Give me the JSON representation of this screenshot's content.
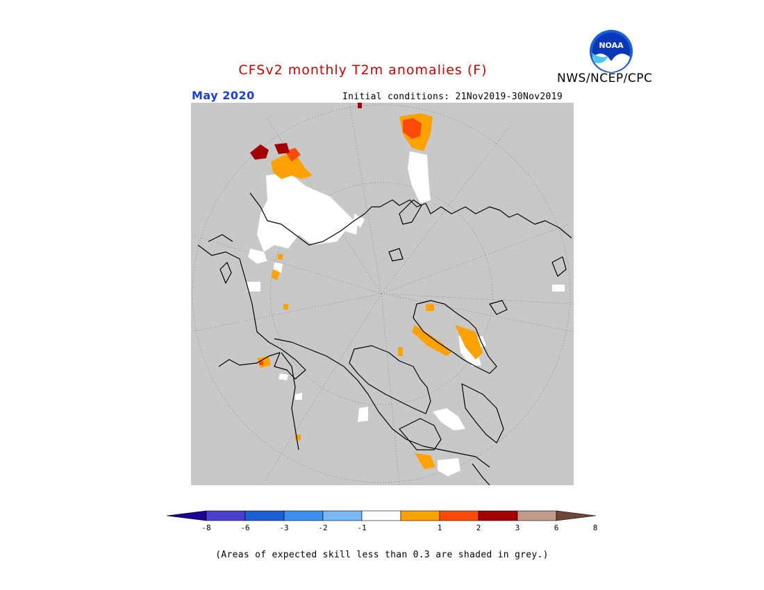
{
  "header": {
    "title": "CFSv2 monthly T2m anomalies (F)",
    "agency": "NWS/NCEP/CPC",
    "logo_text": "NOAA",
    "period": "May 2020",
    "initial_conditions": "Initial conditions: 21Nov2019-30Nov2019"
  },
  "colors": {
    "title": "#cc0000",
    "period": "#1a3ed8",
    "grey_skill": "#c8c8c8",
    "land_outline": "#000000",
    "graticule": "#777777"
  },
  "map": {
    "projection": "north polar stereographic",
    "graticule": "dotted"
  },
  "legend": {
    "type": "colorbar",
    "labels": [
      "-8",
      "-6",
      "-3",
      "-2",
      "-1",
      "1",
      "2",
      "3",
      "6",
      "8"
    ],
    "bins": [
      {
        "range": "< -8",
        "color": "#1c0296"
      },
      {
        "range": "-8 to -6",
        "color": "#4a3fd0"
      },
      {
        "range": "-6 to -3",
        "color": "#1d5fd6"
      },
      {
        "range": "-3 to -2",
        "color": "#3c8ff0"
      },
      {
        "range": "-2 to -1",
        "color": "#77b8f5"
      },
      {
        "range": "-1 to 1",
        "color": "#ffffff"
      },
      {
        "range": "1 to 2",
        "color": "#ffa200"
      },
      {
        "range": "2 to 3",
        "color": "#ff4a0a"
      },
      {
        "range": "3 to 6",
        "color": "#a40000"
      },
      {
        "range": "6 to 8",
        "color": "#c49a8a"
      },
      {
        "range": "> 8",
        "color": "#6e4536"
      }
    ]
  },
  "footnote": "(Areas of expected skill less than 0.3 are shaded in grey.)"
}
